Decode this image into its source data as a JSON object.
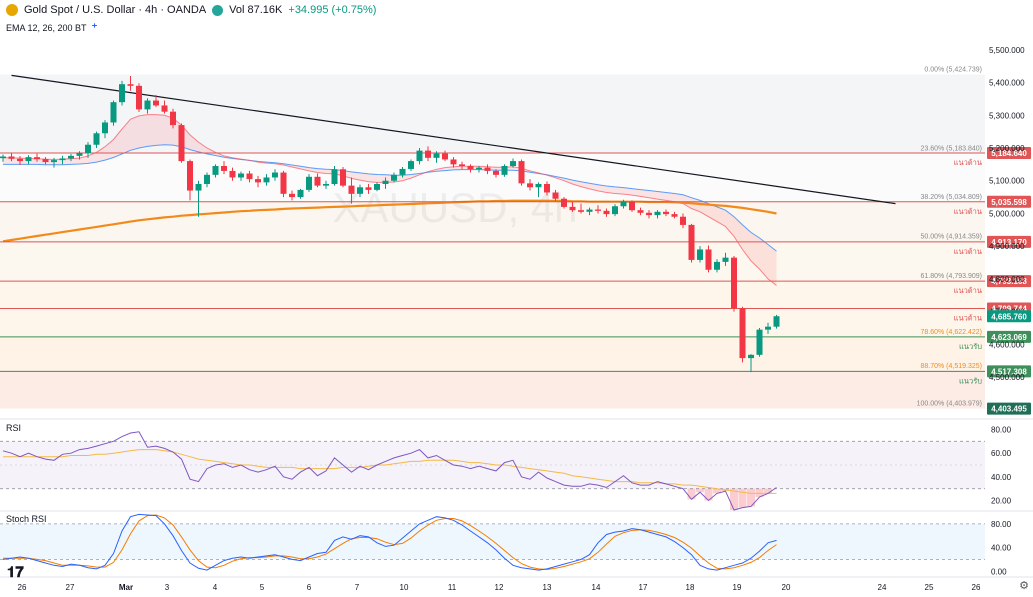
{
  "header": {
    "symbol": "Gold Spot / U.S. Dollar · 4h · OANDA",
    "volume": "Vol 87.16K",
    "change": "+34.995 (+0.75%)",
    "indicator": "EMA 12, 26, 200 BT"
  },
  "watermark": "XAUUSD, 4h",
  "panels": {
    "rsi_label": "RSI",
    "stoch_label": "Stoch RSI"
  },
  "icons": {
    "logo": "gold-coin-icon",
    "live": "live-dot-icon",
    "eye": "eye-icon",
    "add": "plus-icon",
    "settings": "gear-icon",
    "brand": "tradingview-logo-icon"
  },
  "colors": {
    "up": "#089981",
    "down": "#f23645",
    "ema_fast": "#f7525f",
    "ema_slow": "#5b9cf6",
    "ema200": "#f28a1a",
    "trendline": "#131722",
    "resistance": "#e05555",
    "support": "#3f8f5a",
    "rsi": "#7e57c2",
    "rsi_ma": "#f5b947",
    "stoch_k": "#2962ff",
    "stoch_d": "#f57c00"
  },
  "chart_data": {
    "type": "candlestick",
    "title": "Gold Spot / U.S. Dollar · 4h · OANDA",
    "x_labels": [
      "26",
      "27",
      "Mar",
      "3",
      "4",
      "5",
      "6",
      "7",
      "10",
      "11",
      "12",
      "13",
      "14",
      "17",
      "18",
      "19",
      "20",
      "24",
      "25",
      "26"
    ],
    "y_ticks": [
      "5,500.000",
      "5,400.000",
      "5,300.000",
      "5,200.000",
      "5,100.000",
      "5,000.000",
      "4,900.000",
      "4,800.000",
      "4,700.000",
      "4,600.000",
      "4,500.000"
    ],
    "ylim": [
      4375,
      5530
    ],
    "candles": [
      [
        5169,
        5180,
        5158,
        5174
      ],
      [
        5174,
        5186,
        5160,
        5167
      ],
      [
        5167,
        5175,
        5148,
        5160
      ],
      [
        5160,
        5178,
        5150,
        5172
      ],
      [
        5172,
        5183,
        5158,
        5166
      ],
      [
        5166,
        5172,
        5150,
        5157
      ],
      [
        5157,
        5170,
        5140,
        5163
      ],
      [
        5163,
        5176,
        5150,
        5168
      ],
      [
        5168,
        5182,
        5160,
        5176
      ],
      [
        5176,
        5190,
        5165,
        5185
      ],
      [
        5185,
        5218,
        5170,
        5210
      ],
      [
        5210,
        5250,
        5200,
        5245
      ],
      [
        5245,
        5285,
        5230,
        5278
      ],
      [
        5278,
        5345,
        5268,
        5340
      ],
      [
        5340,
        5405,
        5330,
        5395
      ],
      [
        5395,
        5420,
        5375,
        5390
      ],
      [
        5390,
        5398,
        5310,
        5318
      ],
      [
        5318,
        5352,
        5305,
        5345
      ],
      [
        5345,
        5362,
        5325,
        5330
      ],
      [
        5330,
        5345,
        5305,
        5311
      ],
      [
        5311,
        5320,
        5260,
        5270
      ],
      [
        5270,
        5275,
        5155,
        5160
      ],
      [
        5160,
        5165,
        5040,
        5070
      ],
      [
        5070,
        5100,
        4990,
        5090
      ],
      [
        5090,
        5125,
        5080,
        5118
      ],
      [
        5118,
        5150,
        5110,
        5145
      ],
      [
        5145,
        5160,
        5120,
        5130
      ],
      [
        5130,
        5140,
        5100,
        5110
      ],
      [
        5110,
        5128,
        5100,
        5122
      ],
      [
        5122,
        5130,
        5095,
        5105
      ],
      [
        5105,
        5115,
        5080,
        5095
      ],
      [
        5095,
        5120,
        5085,
        5110
      ],
      [
        5110,
        5135,
        5100,
        5125
      ],
      [
        5125,
        5130,
        5050,
        5060
      ],
      [
        5060,
        5070,
        5040,
        5050
      ],
      [
        5050,
        5075,
        5045,
        5072
      ],
      [
        5072,
        5120,
        5066,
        5112
      ],
      [
        5112,
        5122,
        5080,
        5085
      ],
      [
        5085,
        5100,
        5075,
        5090
      ],
      [
        5090,
        5145,
        5085,
        5135
      ],
      [
        5135,
        5142,
        5080,
        5085
      ],
      [
        5085,
        5110,
        5030,
        5060
      ],
      [
        5060,
        5088,
        5050,
        5080
      ],
      [
        5080,
        5090,
        5060,
        5072
      ],
      [
        5072,
        5095,
        5068,
        5090
      ],
      [
        5090,
        5110,
        5075,
        5100
      ],
      [
        5100,
        5125,
        5095,
        5118
      ],
      [
        5118,
        5142,
        5110,
        5136
      ],
      [
        5136,
        5165,
        5130,
        5160
      ],
      [
        5160,
        5200,
        5150,
        5192
      ],
      [
        5192,
        5205,
        5160,
        5170
      ],
      [
        5170,
        5190,
        5155,
        5183
      ],
      [
        5183,
        5192,
        5160,
        5165
      ],
      [
        5165,
        5172,
        5140,
        5150
      ],
      [
        5150,
        5158,
        5135,
        5145
      ],
      [
        5145,
        5150,
        5125,
        5135
      ],
      [
        5135,
        5145,
        5125,
        5140
      ],
      [
        5140,
        5150,
        5120,
        5130
      ],
      [
        5130,
        5135,
        5110,
        5118
      ],
      [
        5118,
        5150,
        5112,
        5145
      ],
      [
        5145,
        5168,
        5140,
        5160
      ],
      [
        5160,
        5165,
        5085,
        5092
      ],
      [
        5092,
        5105,
        5070,
        5080
      ],
      [
        5080,
        5095,
        5050,
        5090
      ],
      [
        5090,
        5098,
        5055,
        5064
      ],
      [
        5064,
        5072,
        5038,
        5045
      ],
      [
        5045,
        5050,
        5015,
        5020
      ],
      [
        5020,
        5036,
        5005,
        5010
      ],
      [
        5010,
        5030,
        5000,
        5005
      ],
      [
        5005,
        5018,
        4995,
        5012
      ],
      [
        5012,
        5025,
        5000,
        5008
      ],
      [
        5008,
        5015,
        4990,
        4998
      ],
      [
        4998,
        5028,
        4992,
        5022
      ],
      [
        5022,
        5042,
        5015,
        5036
      ],
      [
        5036,
        5040,
        5005,
        5010
      ],
      [
        5010,
        5018,
        4995,
        5002
      ],
      [
        5002,
        5010,
        4985,
        4995
      ],
      [
        4995,
        5010,
        4985,
        5005
      ],
      [
        5005,
        5012,
        4992,
        4998
      ],
      [
        4998,
        5005,
        4985,
        4990
      ],
      [
        4990,
        5000,
        4955,
        4965
      ],
      [
        4965,
        4968,
        4850,
        4858
      ],
      [
        4858,
        4900,
        4850,
        4890
      ],
      [
        4890,
        4902,
        4820,
        4828
      ],
      [
        4828,
        4860,
        4820,
        4852
      ],
      [
        4852,
        4880,
        4840,
        4865
      ],
      [
        4865,
        4870,
        4700,
        4710
      ],
      [
        4710,
        4715,
        4545,
        4558
      ],
      [
        4558,
        4570,
        4515,
        4568
      ],
      [
        4568,
        4650,
        4562,
        4645
      ],
      [
        4645,
        4666,
        4632,
        4654
      ],
      [
        4654,
        4690,
        4648,
        4686
      ]
    ],
    "ema_fast": [
      5170,
      5170,
      5169,
      5168,
      5167,
      5166,
      5165,
      5166,
      5167,
      5169,
      5176,
      5187,
      5204,
      5226,
      5258,
      5288,
      5298,
      5302,
      5302,
      5300,
      5291,
      5270,
      5240,
      5218,
      5200,
      5187,
      5176,
      5170,
      5166,
      5162,
      5157,
      5154,
      5152,
      5148,
      5142,
      5136,
      5130,
      5125,
      5122,
      5121,
      5115,
      5107,
      5102,
      5097,
      5095,
      5095,
      5096,
      5100,
      5108,
      5118,
      5128,
      5135,
      5140,
      5143,
      5144,
      5144,
      5144,
      5143,
      5141,
      5141,
      5143,
      5138,
      5130,
      5124,
      5117,
      5109,
      5100,
      5090,
      5082,
      5075,
      5069,
      5064,
      5061,
      5059,
      5056,
      5052,
      5048,
      5044,
      5040,
      5036,
      5030,
      5015,
      5005,
      4990,
      4975,
      4960,
      4930,
      4890,
      4855,
      4830,
      4800,
      4780
    ],
    "ema_slow": [
      5150,
      5150,
      5150,
      5150,
      5150,
      5149,
      5149,
      5149,
      5150,
      5151,
      5153,
      5157,
      5163,
      5171,
      5182,
      5193,
      5200,
      5205,
      5208,
      5210,
      5209,
      5204,
      5195,
      5188,
      5182,
      5177,
      5172,
      5168,
      5165,
      5162,
      5159,
      5157,
      5155,
      5152,
      5148,
      5144,
      5140,
      5137,
      5135,
      5134,
      5131,
      5127,
      5124,
      5121,
      5119,
      5118,
      5117,
      5117,
      5119,
      5122,
      5126,
      5129,
      5131,
      5133,
      5134,
      5134,
      5134,
      5133,
      5132,
      5132,
      5132,
      5130,
      5126,
      5122,
      5118,
      5113,
      5108,
      5102,
      5097,
      5092,
      5088,
      5084,
      5081,
      5079,
      5076,
      5073,
      5070,
      5067,
      5064,
      5061,
      5057,
      5048,
      5040,
      5030,
      5020,
      5010,
      4990,
      4965,
      4942,
      4925,
      4905,
      4885
    ],
    "ema200": [
      4915,
      4919,
      4923,
      4927,
      4931,
      4935,
      4939,
      4943,
      4947,
      4951,
      4955,
      4959,
      4963,
      4967,
      4971,
      4975,
      4979,
      4982,
      4985,
      4988,
      4990,
      4993,
      4995,
      4997,
      4999,
      5001,
      5003,
      5005,
      5007,
      5008,
      5010,
      5011,
      5012,
      5014,
      5015,
      5016,
      5017,
      5018,
      5019,
      5020,
      5021,
      5022,
      5023,
      5024,
      5025,
      5026,
      5027,
      5028,
      5029,
      5030,
      5031,
      5032,
      5033,
      5034,
      5035,
      5036,
      5037,
      5037,
      5038,
      5038,
      5039,
      5039,
      5039,
      5039,
      5039,
      5038,
      5038,
      5037,
      5037,
      5036,
      5036,
      5036,
      5036,
      5036,
      5036,
      5036,
      5035,
      5035,
      5035,
      5034,
      5033,
      5031,
      5029,
      5027,
      5025,
      5023,
      5020,
      5017,
      5013,
      5009,
      5005,
      5000
    ],
    "trendline": [
      [
        1,
        5422
      ],
      [
        105,
        5030
      ]
    ],
    "fibonacci": [
      {
        "label": "0.00% (5,424.739)",
        "value": 5424.739
      },
      {
        "label": "23.60% (5,183.840)",
        "value": 5183.84
      },
      {
        "label": "38.20% (5,034.809)",
        "value": 5034.809
      },
      {
        "label": "50.00% (4,914.359)",
        "value": 4914.359
      },
      {
        "label": "61.80% (4,793.909)",
        "value": 4793.909
      },
      {
        "label": "78.60% (4,622.422)",
        "value": 4622.422
      },
      {
        "label": "88.70% (4,519.325)",
        "value": 4519.325
      },
      {
        "label": "100.00% (4,403.979)",
        "value": 4403.979
      }
    ],
    "levels": [
      {
        "value": 5184.64,
        "label": "5,184.640",
        "note": "แนวต้าน",
        "type": "resistance"
      },
      {
        "value": 5035.598,
        "label": "5,035.598",
        "note": "แนวต้าน",
        "type": "resistance"
      },
      {
        "value": 4913.17,
        "label": "4,913.170",
        "note": "แนวต้าน",
        "type": "resistance"
      },
      {
        "value": 4793.168,
        "label": "4,793.168",
        "note": "แนวต้าน",
        "type": "resistance"
      },
      {
        "value": 4709.744,
        "label": "4,709.744",
        "note": "แนวต้าน",
        "type": "resistance"
      },
      {
        "value": 4623.069,
        "label": "4,623.069",
        "note": "แนวรับ",
        "type": "support"
      },
      {
        "value": 4517.308,
        "label": "4,517.308",
        "note": "แนวรับ",
        "type": "support"
      }
    ],
    "last_price": {
      "value": 4685.76,
      "label": "4,685.760"
    },
    "low_marker": {
      "value": 4403.495,
      "label": "4,403.495"
    },
    "rsi": {
      "y_ticks": [
        "80.00",
        "60.00",
        "40.00",
        "20.00"
      ],
      "ylim": [
        12,
        88
      ],
      "bands": [
        70,
        30
      ],
      "values": [
        62,
        60,
        57,
        60,
        57,
        55,
        54,
        59,
        60,
        63,
        64,
        66,
        68,
        70,
        74,
        77,
        78,
        65,
        66,
        64,
        61,
        55,
        38,
        36,
        47,
        50,
        51,
        48,
        50,
        46,
        44,
        46,
        49,
        40,
        38,
        44,
        48,
        41,
        45,
        56,
        50,
        44,
        49,
        46,
        50,
        53,
        56,
        58,
        60,
        63,
        56,
        58,
        54,
        50,
        49,
        47,
        49,
        47,
        45,
        52,
        54,
        40,
        38,
        44,
        39,
        36,
        33,
        32,
        32,
        34,
        33,
        31,
        36,
        41,
        35,
        33,
        33,
        36,
        34,
        32,
        30,
        21,
        27,
        20,
        26,
        28,
        12,
        14,
        15,
        23,
        26,
        31
      ],
      "ma": [
        57,
        57,
        57,
        57,
        57,
        57,
        57,
        57,
        58,
        58,
        58,
        59,
        59,
        60,
        61,
        62,
        63,
        63,
        63,
        62,
        61,
        59,
        57,
        55,
        54,
        53,
        52,
        51,
        50,
        50,
        49,
        48,
        48,
        48,
        48,
        47,
        47,
        47,
        47,
        47,
        48,
        48,
        48,
        49,
        50,
        50,
        51,
        52,
        53,
        53,
        54,
        54,
        54,
        54,
        53,
        52,
        52,
        51,
        50,
        50,
        49,
        48,
        47,
        46,
        45,
        44,
        43,
        41,
        40,
        39,
        38,
        37,
        36,
        36,
        36,
        35,
        35,
        35,
        34,
        34,
        33,
        33,
        32,
        31,
        30,
        29,
        28,
        27,
        26,
        26,
        26,
        26
      ]
    },
    "stoch_rsi": {
      "y_ticks": [
        "80.00",
        "40.00",
        "0.00"
      ],
      "ylim": [
        -8,
        100
      ],
      "bands": [
        80,
        20
      ],
      "k": [
        20,
        22,
        24,
        22,
        18,
        14,
        10,
        8,
        12,
        10,
        6,
        4,
        10,
        30,
        68,
        92,
        96,
        95,
        94,
        80,
        60,
        35,
        14,
        5,
        2,
        10,
        18,
        22,
        24,
        22,
        24,
        26,
        28,
        24,
        20,
        18,
        24,
        30,
        32,
        52,
        58,
        54,
        60,
        58,
        48,
        42,
        44,
        56,
        68,
        80,
        86,
        92,
        90,
        86,
        78,
        68,
        58,
        48,
        36,
        22,
        10,
        6,
        4,
        2,
        4,
        8,
        12,
        16,
        20,
        28,
        48,
        62,
        66,
        68,
        72,
        70,
        66,
        62,
        58,
        50,
        40,
        28,
        10,
        4,
        2,
        6,
        10,
        14,
        22,
        34,
        48,
        52
      ],
      "d": [
        22,
        22,
        22,
        22,
        20,
        18,
        14,
        10,
        10,
        10,
        9,
        7,
        7,
        15,
        36,
        63,
        85,
        94,
        95,
        90,
        78,
        58,
        36,
        18,
        7,
        6,
        10,
        17,
        21,
        23,
        23,
        24,
        26,
        26,
        24,
        21,
        21,
        24,
        29,
        38,
        47,
        55,
        57,
        57,
        55,
        49,
        45,
        47,
        56,
        68,
        78,
        86,
        89,
        89,
        85,
        77,
        68,
        58,
        47,
        35,
        23,
        13,
        7,
        4,
        3,
        5,
        8,
        12,
        16,
        21,
        32,
        46,
        59,
        65,
        69,
        70,
        69,
        66,
        62,
        57,
        49,
        39,
        26,
        14,
        5,
        4,
        6,
        10,
        15,
        23,
        35,
        45
      ]
    }
  }
}
